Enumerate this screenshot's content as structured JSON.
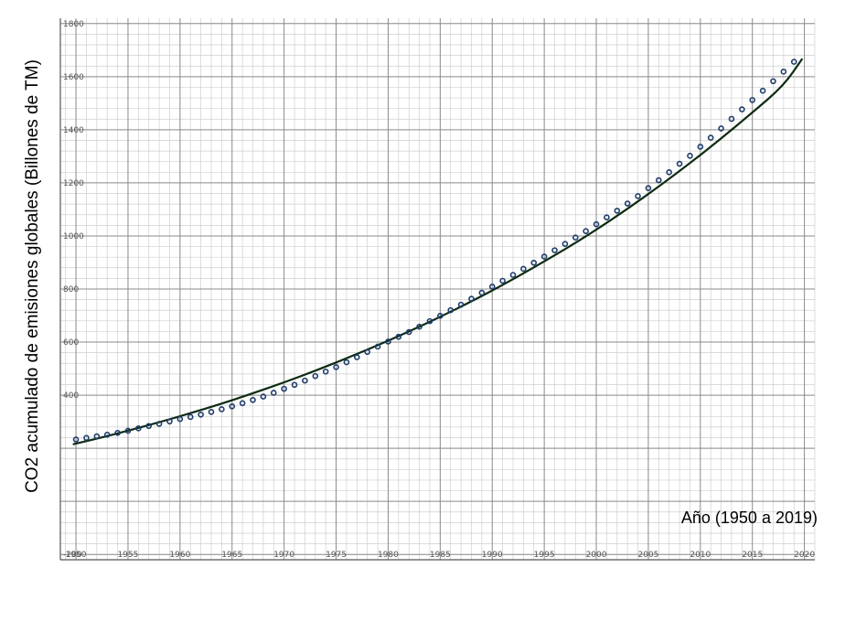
{
  "chart_data": {
    "type": "scatter",
    "title": "",
    "xlabel": "Año (1950 a 2019)",
    "ylabel": "CO2 acumulado de emisiones globales (Billones de TM)",
    "xlim": [
      1948.5,
      2021
    ],
    "ylim": [
      -220,
      1820
    ],
    "grid": true,
    "x_ticks": [
      1950,
      1955,
      1960,
      1965,
      1970,
      1975,
      1980,
      1985,
      1990,
      1995,
      2000,
      2005,
      2010,
      2015,
      2020
    ],
    "y_ticks": [
      -200,
      400,
      600,
      800,
      1000,
      1200,
      1400,
      1600,
      1800
    ],
    "y_tick_labels": [
      "-200",
      "400",
      "600",
      "800",
      "1000",
      "1200",
      "1400",
      "1600",
      "1800"
    ],
    "series": [
      {
        "kind": "points",
        "color": "#1f3d6b",
        "x": [
          1950,
          1951,
          1952,
          1953,
          1954,
          1955,
          1956,
          1957,
          1958,
          1959,
          1960,
          1961,
          1962,
          1963,
          1964,
          1965,
          1966,
          1967,
          1968,
          1969,
          1970,
          1971,
          1972,
          1973,
          1974,
          1975,
          1976,
          1977,
          1978,
          1979,
          1980,
          1981,
          1982,
          1983,
          1984,
          1985,
          1986,
          1987,
          1988,
          1989,
          1990,
          1991,
          1992,
          1993,
          1994,
          1995,
          1996,
          1997,
          1998,
          1999,
          2000,
          2001,
          2002,
          2003,
          2004,
          2005,
          2006,
          2007,
          2008,
          2009,
          2010,
          2011,
          2012,
          2013,
          2014,
          2015,
          2016,
          2017,
          2018,
          2019
        ],
        "y": [
          233,
          239,
          245,
          251,
          258,
          266,
          275,
          284,
          292,
          301,
          310,
          318,
          327,
          337,
          347,
          358,
          370,
          382,
          395,
          409,
          424,
          439,
          455,
          472,
          489,
          506,
          524,
          543,
          563,
          583,
          602,
          620,
          638,
          658,
          679,
          699,
          720,
          741,
          763,
          786,
          809,
          831,
          853,
          876,
          899,
          922,
          946,
          970,
          994,
          1018,
          1044,
          1070,
          1095,
          1122,
          1150,
          1180,
          1210,
          1240,
          1272,
          1302,
          1336,
          1370,
          1405,
          1441,
          1477,
          1512,
          1547,
          1583,
          1619,
          1656
        ]
      },
      {
        "kind": "fit-line",
        "color": "#0d2b12",
        "x": [
          1949.7,
          1952,
          1955,
          1958,
          1961,
          1964,
          1967,
          1970,
          1973,
          1976,
          1979,
          1982,
          1985,
          1988,
          1991,
          1994,
          1997,
          2000,
          2003,
          2006,
          2009,
          2012,
          2015,
          2018,
          2019.8
        ],
        "y": [
          215,
          236,
          266,
          298,
          332,
          368,
          407,
          448,
          492,
          539,
          588,
          640,
          695,
          753,
          815,
          881,
          950,
          1023,
          1102,
          1186,
          1274,
          1367,
          1465,
          1566,
          1668
        ]
      }
    ]
  }
}
